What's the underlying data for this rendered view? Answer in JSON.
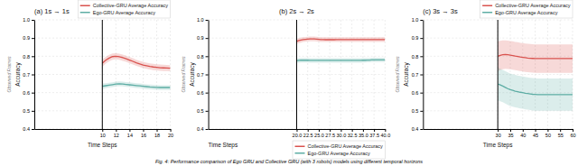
{
  "chart_data": [
    {
      "type": "line",
      "title": "(a) 1s → 1s",
      "x_label": "Time Steps",
      "y_label": "Accuracy",
      "annotations": [
        "Observed Frames",
        "Fig. 4: Performance comparison of Ego GRU and Collective GRU (with 3 robots) models using different temporal horizons"
      ],
      "x": [
        10,
        10.5,
        11,
        11.5,
        12,
        12.5,
        13,
        13.5,
        14,
        14.5,
        15,
        15.5,
        16,
        16.5,
        17,
        17.5,
        18,
        18.5,
        19,
        19.5,
        20
      ],
      "xlim": [
        0,
        20
      ],
      "ylim": [
        0.4,
        1.0
      ],
      "xticks": [
        10,
        12,
        14,
        16,
        18,
        20
      ],
      "yticks": [
        0.4,
        0.5,
        0.6,
        0.7,
        0.8,
        0.9,
        {
          "value": 1,
          "label": "1.0"
        }
      ],
      "vline": 10,
      "grid": true,
      "legend": "upper right",
      "series": [
        {
          "name": "Collective-GRU Average Accuracy",
          "color": "#d9534f",
          "values": [
            0.762,
            0.778,
            0.79,
            0.798,
            0.8,
            0.797,
            0.792,
            0.786,
            0.779,
            0.772,
            0.764,
            0.758,
            0.752,
            0.748,
            0.744,
            0.741,
            0.739,
            0.737,
            0.736,
            0.735,
            0.734
          ],
          "std": [
            0.02,
            0.019,
            0.018,
            0.017,
            0.017,
            0.017,
            0.017,
            0.017,
            0.017,
            0.017,
            0.017,
            0.017,
            0.017,
            0.017,
            0.017,
            0.017,
            0.017,
            0.017,
            0.017,
            0.017,
            0.017
          ]
        },
        {
          "name": "Ego-GRU Average Accuracy",
          "color": "#5dada4",
          "values": [
            0.635,
            0.638,
            0.641,
            0.644,
            0.647,
            0.648,
            0.647,
            0.645,
            0.643,
            0.641,
            0.639,
            0.637,
            0.635,
            0.633,
            0.631,
            0.63,
            0.629,
            0.628,
            0.628,
            0.628,
            0.628
          ],
          "std": [
            0.015,
            0.014,
            0.013,
            0.013,
            0.013,
            0.013,
            0.013,
            0.013,
            0.013,
            0.013,
            0.013,
            0.013,
            0.013,
            0.013,
            0.013,
            0.013,
            0.013,
            0.013,
            0.013,
            0.013,
            0.013
          ]
        }
      ]
    },
    {
      "type": "line",
      "title": "(b) 2s → 2s",
      "x_label": "Time Steps",
      "y_label": "Accuracy",
      "annotations": [
        "Observed Frames"
      ],
      "x": [
        20,
        20.5,
        21,
        21.5,
        22,
        22.5,
        23,
        23.5,
        24,
        24.5,
        25,
        25.5,
        26,
        26.5,
        27,
        27.5,
        28,
        28.5,
        29,
        29.5,
        30,
        30.5,
        31,
        31.5,
        32,
        32.5,
        33,
        33.5,
        34,
        34.5,
        35,
        35.5,
        36,
        36.5,
        37,
        37.5,
        38,
        38.5,
        39,
        39.5,
        40
      ],
      "xlim": [
        0,
        40
      ],
      "ylim": [
        0.4,
        1.0
      ],
      "xticks": [
        {
          "value": 20,
          "label": "20.0"
        },
        22.5,
        {
          "value": 25,
          "label": "25.0"
        },
        27.5,
        {
          "value": 30,
          "label": "30.0"
        },
        32.5,
        {
          "value": 35,
          "label": "35.0"
        },
        37.5,
        {
          "value": 40,
          "label": "40.0"
        }
      ],
      "yticks": [
        0.4,
        0.5,
        0.6,
        0.7,
        0.8,
        0.9,
        {
          "value": 1,
          "label": "1.0"
        }
      ],
      "vline": 20,
      "grid": true,
      "legend": "lower right",
      "series": [
        {
          "name": "Collective-GRU Average Accuracy",
          "color": "#d9534f",
          "values": [
            0.882,
            0.886,
            0.889,
            0.891,
            0.893,
            0.894,
            0.895,
            0.895,
            0.895,
            0.894,
            0.893,
            0.892,
            0.892,
            0.891,
            0.891,
            0.891,
            0.891,
            0.891,
            0.892,
            0.892,
            0.892,
            0.892,
            0.892,
            0.892,
            0.892,
            0.892,
            0.892,
            0.892,
            0.892,
            0.892,
            0.892,
            0.892,
            0.892,
            0.892,
            0.892,
            0.892,
            0.892,
            0.892,
            0.892,
            0.892,
            0.892
          ],
          "std": [
            0.015,
            0.014,
            0.014,
            0.013,
            0.013,
            0.013,
            0.013,
            0.013,
            0.013,
            0.013,
            0.013,
            0.013,
            0.013,
            0.013,
            0.013,
            0.013,
            0.013,
            0.013,
            0.013,
            0.013,
            0.013,
            0.013,
            0.013,
            0.013,
            0.013,
            0.013,
            0.013,
            0.013,
            0.013,
            0.013,
            0.013,
            0.013,
            0.013,
            0.013,
            0.013,
            0.013,
            0.013,
            0.013,
            0.013,
            0.013,
            0.013
          ]
        },
        {
          "name": "Ego-GRU Average Accuracy",
          "color": "#5dada4",
          "values": [
            0.775,
            0.777,
            0.778,
            0.778,
            0.778,
            0.778,
            0.777,
            0.777,
            0.777,
            0.777,
            0.777,
            0.777,
            0.777,
            0.777,
            0.777,
            0.777,
            0.777,
            0.777,
            0.777,
            0.777,
            0.777,
            0.777,
            0.777,
            0.777,
            0.777,
            0.777,
            0.777,
            0.777,
            0.777,
            0.777,
            0.778,
            0.778,
            0.779,
            0.779,
            0.78,
            0.78,
            0.78,
            0.78,
            0.78,
            0.78,
            0.78
          ],
          "std": [
            0.012,
            0.012,
            0.012,
            0.012,
            0.012,
            0.012,
            0.012,
            0.012,
            0.012,
            0.012,
            0.012,
            0.012,
            0.012,
            0.012,
            0.012,
            0.012,
            0.012,
            0.012,
            0.012,
            0.012,
            0.012,
            0.012,
            0.012,
            0.012,
            0.012,
            0.012,
            0.012,
            0.012,
            0.012,
            0.012,
            0.012,
            0.012,
            0.012,
            0.012,
            0.012,
            0.012,
            0.012,
            0.012,
            0.012,
            0.012,
            0.012
          ]
        }
      ]
    },
    {
      "type": "line",
      "title": "(c) 3s → 3s",
      "x_label": "Time Steps",
      "y_label": "Accuracy",
      "annotations": [
        "Observed Frames"
      ],
      "x": [
        30,
        31,
        32,
        33,
        34,
        35,
        36,
        37,
        38,
        39,
        40,
        41,
        42,
        43,
        44,
        45,
        46,
        47,
        48,
        49,
        50,
        51,
        52,
        53,
        54,
        55,
        56,
        57,
        58,
        59,
        60
      ],
      "xlim": [
        0,
        60
      ],
      "ylim": [
        0.4,
        1.0
      ],
      "xticks": [
        30,
        35,
        40,
        45,
        50,
        55,
        60
      ],
      "yticks": [
        0.4,
        0.5,
        0.6,
        0.7,
        0.8,
        0.9,
        {
          "value": 1,
          "label": "1.0"
        }
      ],
      "vline": 30,
      "grid": true,
      "legend": "upper right",
      "series": [
        {
          "name": "Collective-GRU Average Accuracy",
          "color": "#d9534f",
          "values": [
            0.8,
            0.805,
            0.808,
            0.809,
            0.808,
            0.806,
            0.804,
            0.801,
            0.799,
            0.796,
            0.794,
            0.792,
            0.79,
            0.789,
            0.788,
            0.787,
            0.787,
            0.787,
            0.787,
            0.787,
            0.787,
            0.787,
            0.787,
            0.787,
            0.787,
            0.787,
            0.787,
            0.787,
            0.787,
            0.787,
            0.787
          ],
          "std": [
            0.082,
            0.08,
            0.079,
            0.078,
            0.078,
            0.078,
            0.078,
            0.078,
            0.078,
            0.078,
            0.078,
            0.078,
            0.078,
            0.078,
            0.078,
            0.078,
            0.078,
            0.078,
            0.078,
            0.078,
            0.078,
            0.078,
            0.078,
            0.078,
            0.078,
            0.078,
            0.078,
            0.078,
            0.078,
            0.078,
            0.078
          ]
        },
        {
          "name": "Ego-GRU Average Accuracy",
          "color": "#5dada4",
          "values": [
            0.648,
            0.642,
            0.636,
            0.629,
            0.622,
            0.616,
            0.612,
            0.608,
            0.605,
            0.602,
            0.6,
            0.597,
            0.595,
            0.593,
            0.591,
            0.59,
            0.589,
            0.589,
            0.589,
            0.589,
            0.589,
            0.589,
            0.589,
            0.589,
            0.589,
            0.589,
            0.589,
            0.589,
            0.589,
            0.589,
            0.589
          ],
          "std": [
            0.09,
            0.089,
            0.089,
            0.089,
            0.089,
            0.089,
            0.089,
            0.089,
            0.089,
            0.089,
            0.089,
            0.089,
            0.089,
            0.089,
            0.089,
            0.089,
            0.089,
            0.089,
            0.089,
            0.089,
            0.089,
            0.089,
            0.089,
            0.089,
            0.089,
            0.089,
            0.089,
            0.089,
            0.089,
            0.089,
            0.089
          ]
        }
      ]
    }
  ]
}
